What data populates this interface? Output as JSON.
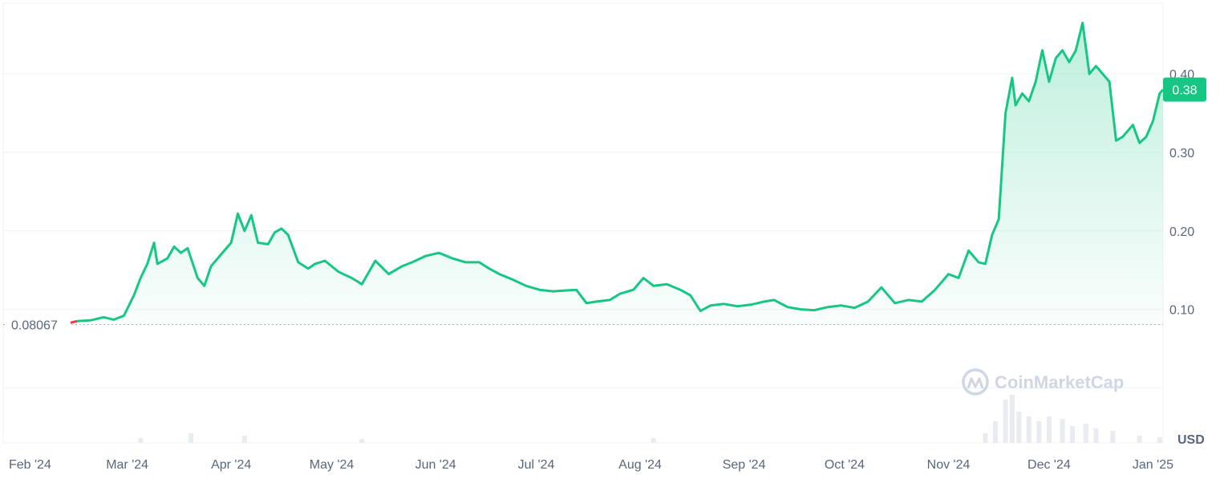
{
  "chart_data": {
    "type": "area",
    "currency": "USD",
    "current_price": "0.38",
    "reference_price": "0.08067",
    "watermark": "CoinMarketCap",
    "x_ticks": [
      "Feb '24",
      "Mar '24",
      "Apr '24",
      "May '24",
      "Jun '24",
      "Jul '24",
      "Aug '24",
      "Sep '24",
      "Oct '24",
      "Nov '24",
      "Dec '24",
      "Jan '25"
    ],
    "y_ticks": [
      "0.10",
      "0.20",
      "0.30",
      "0.40"
    ],
    "ylim": [
      -0.07,
      0.49
    ],
    "x_range": [
      "2024-01-24",
      "2025-01-04"
    ],
    "grid": true,
    "colors": {
      "up": "#16c784",
      "down": "#ea3943",
      "text": "#58667e",
      "grid": "#eff2f5",
      "badge": "#16c784"
    },
    "series": [
      {
        "values": [
          [
            "2024-01-30",
            0.081
          ],
          [
            "2024-02-02",
            0.082
          ],
          [
            "2024-02-05",
            0.08
          ],
          [
            "2024-02-08",
            0.081
          ],
          [
            "2024-02-12",
            0.082
          ],
          [
            "2024-02-15",
            0.085
          ],
          [
            "2024-02-19",
            0.086
          ],
          [
            "2024-02-23",
            0.09
          ],
          [
            "2024-02-26",
            0.087
          ],
          [
            "2024-02-29",
            0.092
          ],
          [
            "2024-03-03",
            0.118
          ],
          [
            "2024-03-05",
            0.14
          ],
          [
            "2024-03-07",
            0.158
          ],
          [
            "2024-03-09",
            0.185
          ],
          [
            "2024-03-10",
            0.158
          ],
          [
            "2024-03-13",
            0.165
          ],
          [
            "2024-03-15",
            0.18
          ],
          [
            "2024-03-17",
            0.172
          ],
          [
            "2024-03-19",
            0.178
          ],
          [
            "2024-03-22",
            0.14
          ],
          [
            "2024-03-24",
            0.13
          ],
          [
            "2024-03-26",
            0.155
          ],
          [
            "2024-03-29",
            0.17
          ],
          [
            "2024-04-01",
            0.185
          ],
          [
            "2024-04-03",
            0.222
          ],
          [
            "2024-04-05",
            0.2
          ],
          [
            "2024-04-07",
            0.22
          ],
          [
            "2024-04-09",
            0.185
          ],
          [
            "2024-04-12",
            0.183
          ],
          [
            "2024-04-14",
            0.198
          ],
          [
            "2024-04-16",
            0.203
          ],
          [
            "2024-04-18",
            0.195
          ],
          [
            "2024-04-21",
            0.16
          ],
          [
            "2024-04-24",
            0.152
          ],
          [
            "2024-04-26",
            0.158
          ],
          [
            "2024-04-29",
            0.162
          ],
          [
            "2024-05-03",
            0.148
          ],
          [
            "2024-05-07",
            0.14
          ],
          [
            "2024-05-10",
            0.132
          ],
          [
            "2024-05-14",
            0.162
          ],
          [
            "2024-05-18",
            0.145
          ],
          [
            "2024-05-22",
            0.155
          ],
          [
            "2024-05-25",
            0.16
          ],
          [
            "2024-05-29",
            0.168
          ],
          [
            "2024-06-02",
            0.172
          ],
          [
            "2024-06-06",
            0.165
          ],
          [
            "2024-06-10",
            0.16
          ],
          [
            "2024-06-14",
            0.16
          ],
          [
            "2024-06-17",
            0.152
          ],
          [
            "2024-06-20",
            0.145
          ],
          [
            "2024-06-24",
            0.138
          ],
          [
            "2024-06-28",
            0.13
          ],
          [
            "2024-07-02",
            0.125
          ],
          [
            "2024-07-06",
            0.123
          ],
          [
            "2024-07-09",
            0.124
          ],
          [
            "2024-07-13",
            0.125
          ],
          [
            "2024-07-16",
            0.108
          ],
          [
            "2024-07-19",
            0.11
          ],
          [
            "2024-07-23",
            0.112
          ],
          [
            "2024-07-26",
            0.12
          ],
          [
            "2024-07-30",
            0.125
          ],
          [
            "2024-08-02",
            0.14
          ],
          [
            "2024-08-05",
            0.13
          ],
          [
            "2024-08-09",
            0.132
          ],
          [
            "2024-08-13",
            0.125
          ],
          [
            "2024-08-16",
            0.118
          ],
          [
            "2024-08-19",
            0.098
          ],
          [
            "2024-08-22",
            0.105
          ],
          [
            "2024-08-26",
            0.107
          ],
          [
            "2024-08-30",
            0.104
          ],
          [
            "2024-09-03",
            0.106
          ],
          [
            "2024-09-07",
            0.11
          ],
          [
            "2024-09-10",
            0.112
          ],
          [
            "2024-09-14",
            0.103
          ],
          [
            "2024-09-18",
            0.1
          ],
          [
            "2024-09-22",
            0.099
          ],
          [
            "2024-09-26",
            0.103
          ],
          [
            "2024-09-30",
            0.105
          ],
          [
            "2024-10-04",
            0.102
          ],
          [
            "2024-10-08",
            0.11
          ],
          [
            "2024-10-12",
            0.128
          ],
          [
            "2024-10-16",
            0.108
          ],
          [
            "2024-10-20",
            0.112
          ],
          [
            "2024-10-24",
            0.11
          ],
          [
            "2024-10-28",
            0.125
          ],
          [
            "2024-11-01",
            0.145
          ],
          [
            "2024-11-04",
            0.14
          ],
          [
            "2024-11-07",
            0.175
          ],
          [
            "2024-11-10",
            0.16
          ],
          [
            "2024-11-12",
            0.158
          ],
          [
            "2024-11-14",
            0.195
          ],
          [
            "2024-11-16",
            0.215
          ],
          [
            "2024-11-18",
            0.35
          ],
          [
            "2024-11-20",
            0.395
          ],
          [
            "2024-11-21",
            0.36
          ],
          [
            "2024-11-23",
            0.375
          ],
          [
            "2024-11-25",
            0.365
          ],
          [
            "2024-11-27",
            0.39
          ],
          [
            "2024-11-29",
            0.43
          ],
          [
            "2024-12-01",
            0.39
          ],
          [
            "2024-12-03",
            0.42
          ],
          [
            "2024-12-05",
            0.43
          ],
          [
            "2024-12-07",
            0.415
          ],
          [
            "2024-12-09",
            0.43
          ],
          [
            "2024-12-11",
            0.465
          ],
          [
            "2024-12-13",
            0.4
          ],
          [
            "2024-12-15",
            0.41
          ],
          [
            "2024-12-17",
            0.4
          ],
          [
            "2024-12-19",
            0.39
          ],
          [
            "2024-12-21",
            0.315
          ],
          [
            "2024-12-23",
            0.32
          ],
          [
            "2024-12-26",
            0.335
          ],
          [
            "2024-12-28",
            0.312
          ],
          [
            "2024-12-30",
            0.32
          ],
          [
            "2025-01-01",
            0.34
          ],
          [
            "2025-01-03",
            0.375
          ],
          [
            "2025-01-04",
            0.38
          ]
        ]
      }
    ],
    "volume": [
      [
        "2024-03-05",
        0.1
      ],
      [
        "2024-03-20",
        0.2
      ],
      [
        "2024-04-05",
        0.15
      ],
      [
        "2024-05-10",
        0.08
      ],
      [
        "2024-08-05",
        0.1
      ],
      [
        "2024-11-12",
        0.2
      ],
      [
        "2024-11-15",
        0.45
      ],
      [
        "2024-11-18",
        0.9
      ],
      [
        "2024-11-20",
        1.0
      ],
      [
        "2024-11-22",
        0.65
      ],
      [
        "2024-11-25",
        0.55
      ],
      [
        "2024-11-28",
        0.45
      ],
      [
        "2024-12-01",
        0.55
      ],
      [
        "2024-12-05",
        0.5
      ],
      [
        "2024-12-08",
        0.35
      ],
      [
        "2024-12-12",
        0.4
      ],
      [
        "2024-12-15",
        0.3
      ],
      [
        "2024-12-20",
        0.25
      ],
      [
        "2024-12-28",
        0.15
      ],
      [
        "2025-01-03",
        0.12
      ]
    ]
  }
}
